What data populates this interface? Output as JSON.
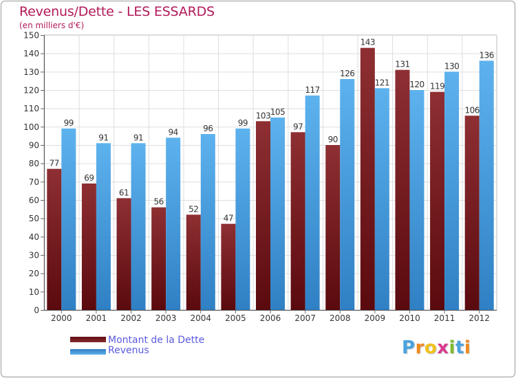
{
  "chart_data": {
    "type": "bar",
    "title": "Revenus/Dette - LES ESSARDS",
    "subtitle": "(en milliers d'€)",
    "xlabel": "",
    "ylabel": "",
    "categories": [
      "2000",
      "2001",
      "2002",
      "2003",
      "2004",
      "2005",
      "2006",
      "2007",
      "2008",
      "2009",
      "2010",
      "2011",
      "2012"
    ],
    "series": [
      {
        "name": "Montant de la Dette",
        "color": "#7a1a1e",
        "values": [
          77,
          69,
          61,
          56,
          52,
          47,
          103,
          97,
          90,
          143,
          131,
          119,
          106
        ]
      },
      {
        "name": "Revenus",
        "color": "#4ea3e4",
        "values": [
          99,
          91,
          91,
          94,
          96,
          99,
          105,
          117,
          126,
          121,
          120,
          130,
          136
        ]
      }
    ],
    "ylim": [
      0,
      150
    ],
    "yticks": [
      0,
      10,
      20,
      30,
      40,
      50,
      60,
      70,
      80,
      90,
      100,
      110,
      120,
      130,
      140,
      150
    ],
    "grid": true,
    "legend_position": "bottom-left"
  },
  "logo": {
    "letters": [
      "P",
      "r",
      "o",
      "x",
      "i",
      "t",
      "i"
    ],
    "colors": [
      "#4aa3df",
      "#f08a1c",
      "#f2c21b",
      "#d93b8e",
      "#7dbb2f",
      "#4aa3df",
      "#f08a1c"
    ]
  }
}
